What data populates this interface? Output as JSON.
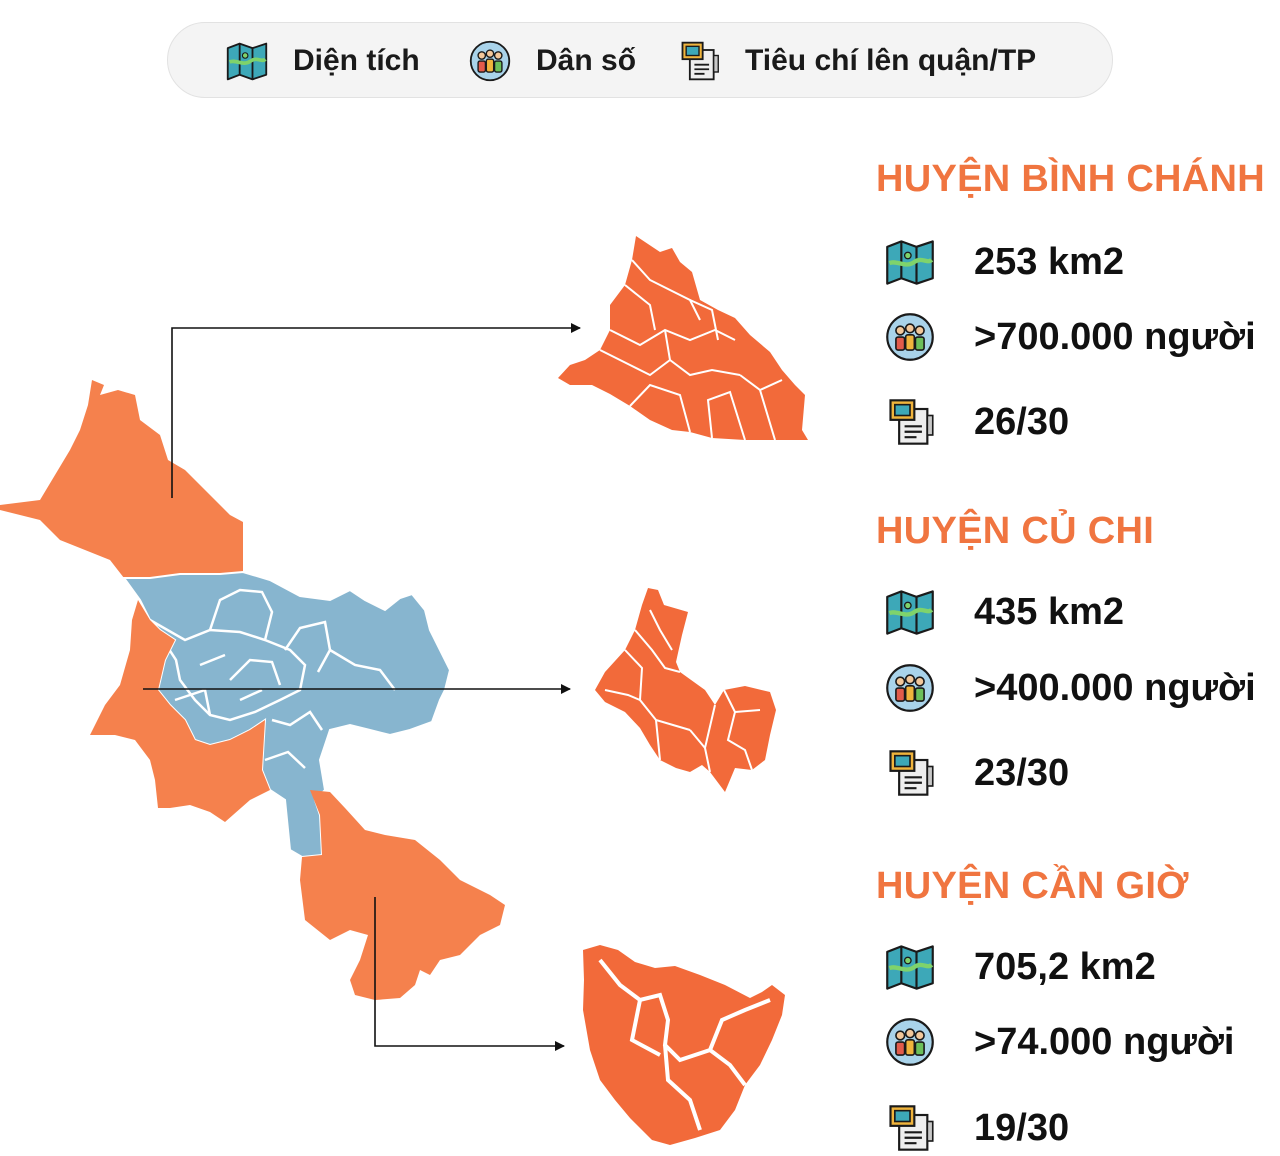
{
  "legend": {
    "area_label": "Diện tích",
    "population_label": "Dân số",
    "criteria_label": "Tiêu chí lên quận/TP"
  },
  "icons": {
    "area": "map-icon",
    "population": "people-icon",
    "criteria": "document-icon"
  },
  "colors": {
    "district_fill": "#f5814d",
    "inset_fill": "#f26a3a",
    "urban_fill": "#87b5cf",
    "title": "#f07540"
  },
  "districts": [
    {
      "name": "HUYỆN BÌNH CHÁNH",
      "area": "253 km2",
      "population": ">700.000 người",
      "criteria": "26/30"
    },
    {
      "name": "HUYỆN CỦ CHI",
      "area": "435 km2",
      "population": ">400.000 người",
      "criteria": "23/30"
    },
    {
      "name": "HUYỆN CẦN GIỜ",
      "area": "705,2 km2",
      "population": ">74.000 người",
      "criteria": "19/30"
    }
  ]
}
